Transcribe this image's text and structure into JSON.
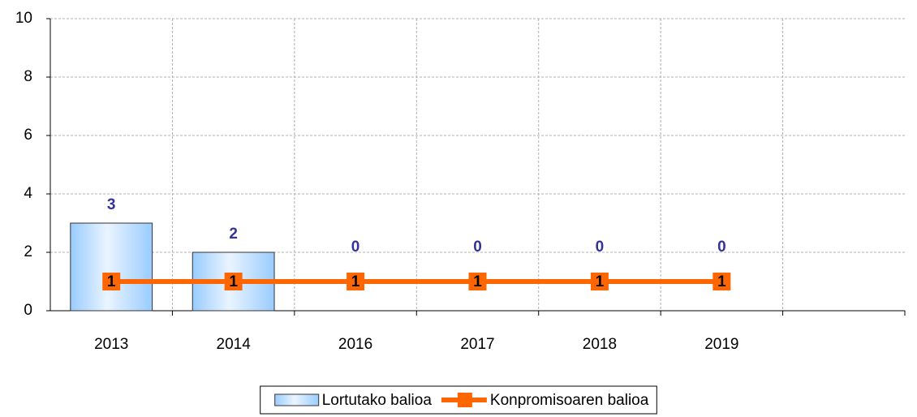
{
  "chart_data": {
    "type": "bar_line",
    "categories": [
      "2013",
      "2014",
      "2016",
      "2017",
      "2018",
      "2019",
      null
    ],
    "series": [
      {
        "name": "Lortutako balioa",
        "type": "bar",
        "color": "#99ccff",
        "values": [
          3,
          2,
          0,
          0,
          0,
          0,
          null
        ]
      },
      {
        "name": "Konpromisoaren balioa",
        "type": "line",
        "color": "#ff6600",
        "values": [
          1,
          1,
          1,
          1,
          1,
          1,
          null
        ]
      }
    ],
    "ylim": [
      0,
      10
    ],
    "yticks": [
      0,
      2,
      4,
      6,
      8,
      10
    ],
    "grid": true,
    "legend": "bottom"
  }
}
